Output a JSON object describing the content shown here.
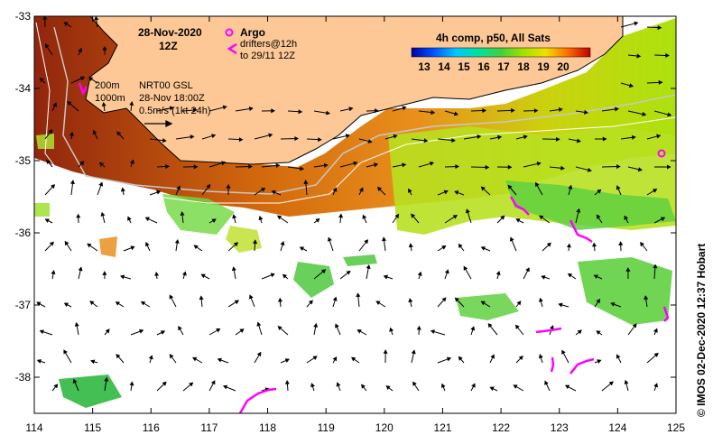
{
  "header": {
    "date": "28-Nov-2020",
    "time": "12Z"
  },
  "legend": {
    "argo_label": "Argo",
    "drifters_label": "drifters@12h",
    "drifters_range": "to 29/11 12Z",
    "argo_color": "#ff00ff",
    "drifter_color": "#ff00ff"
  },
  "colorbar": {
    "title": "4h comp, p50, All Sats",
    "ticks": [
      "13",
      "14",
      "15",
      "16",
      "17",
      "18",
      "19",
      "20"
    ],
    "colors": [
      "#0000a0",
      "#0050ff",
      "#00c8ff",
      "#00e0a0",
      "#40d040",
      "#a0e000",
      "#f0e000",
      "#ffa000",
      "#ff5000",
      "#d00000",
      "#8b1a00"
    ]
  },
  "annotations": {
    "contour_200": "200m",
    "contour_1000": "1000m",
    "nrt_product": "NRT00 GSL",
    "nrt_time": "28-Nov 18:00Z",
    "speed_scale": "0.5m/s (1kt 24h)"
  },
  "axes": {
    "x_ticks": [
      "114",
      "115",
      "116",
      "117",
      "118",
      "119",
      "120",
      "121",
      "122",
      "123",
      "124",
      "125"
    ],
    "y_ticks": [
      "-33",
      "-34",
      "-35",
      "-36",
      "-37",
      "-38"
    ],
    "x_range": [
      114,
      125
    ],
    "y_range": [
      -38.5,
      -33
    ]
  },
  "credit": "© IMOS 02-Dec-2020 12:37 Hobart",
  "colors": {
    "land": "#fdc896",
    "coast": "#000000",
    "bathymetry": "#c8c8c8"
  }
}
